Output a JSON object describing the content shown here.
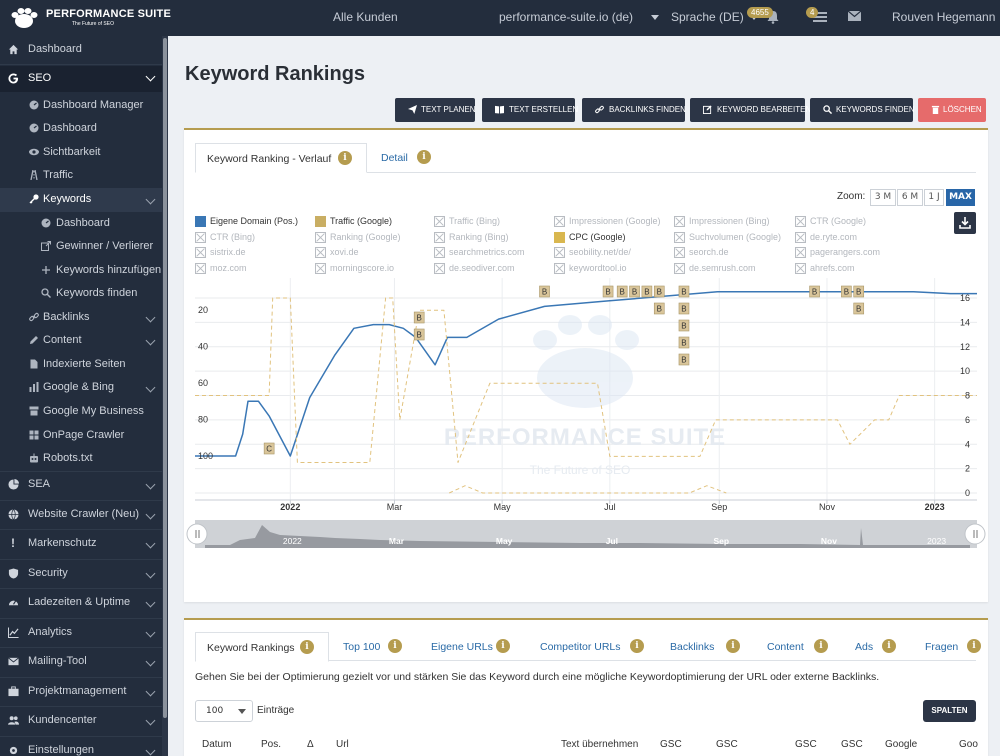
{
  "topbar": {
    "logo_title": "PERFORMANCE SUITE",
    "logo_subtitle": "The Future of SEO",
    "customer_select": "Alle Kunden",
    "domain_select": "performance-suite.io (de)",
    "language_select": "Sprache (DE)",
    "notifications_count": "4655",
    "tasks_count": "4",
    "user_name": "Rouven Hegemann"
  },
  "sidebar": {
    "items": [
      {
        "label": "Dashboard",
        "icon": "home-icon"
      },
      {
        "label": "SEO",
        "icon": "google-icon"
      },
      {
        "label": "Dashboard Manager",
        "icon": "gauge-icon"
      },
      {
        "label": "Dashboard",
        "icon": "gauge-icon"
      },
      {
        "label": "Sichtbarkeit",
        "icon": "eye-icon"
      },
      {
        "label": "Traffic",
        "icon": "traffic-icon"
      },
      {
        "label": "Keywords",
        "icon": "key-icon"
      },
      {
        "label": "Dashboard",
        "icon": "gauge-icon"
      },
      {
        "label": "Gewinner / Verlierer",
        "icon": "external-link-icon"
      },
      {
        "label": "Keywords hinzufügen",
        "icon": "plus-icon"
      },
      {
        "label": "Keywords finden",
        "icon": "search-icon"
      },
      {
        "label": "Backlinks",
        "icon": "link-icon"
      },
      {
        "label": "Content",
        "icon": "pencil-icon"
      },
      {
        "label": "Indexierte Seiten",
        "icon": "file-icon"
      },
      {
        "label": "Google & Bing",
        "icon": "bars-icon"
      },
      {
        "label": "Google My Business",
        "icon": "store-icon"
      },
      {
        "label": "OnPage Crawler",
        "icon": "grid-icon"
      },
      {
        "label": "Robots.txt",
        "icon": "robot-icon"
      },
      {
        "label": "SEA",
        "icon": "pie-icon"
      },
      {
        "label": "Website Crawler (Neu)",
        "icon": "globe-icon"
      },
      {
        "label": "Markenschutz",
        "icon": "exclamation-icon"
      },
      {
        "label": "Security",
        "icon": "shield-icon"
      },
      {
        "label": "Ladezeiten & Uptime",
        "icon": "speed-icon"
      },
      {
        "label": "Analytics",
        "icon": "chart-icon"
      },
      {
        "label": "Mailing-Tool",
        "icon": "mail-icon"
      },
      {
        "label": "Projektmanagement",
        "icon": "briefcase-icon"
      },
      {
        "label": "Kundencenter",
        "icon": "users-icon"
      },
      {
        "label": "Einstellungen",
        "icon": "gear-icon"
      }
    ]
  },
  "page": {
    "title": "Keyword Rankings",
    "actions": [
      "TEXT PLANEN",
      "TEXT ERSTELLEN",
      "BACKLINKS FINDEN",
      "KEYWORD BEARBEITEN",
      "KEYWORDS FINDEN",
      "LÖSCHEN"
    ]
  },
  "chart_panel": {
    "tabs": [
      "Keyword Ranking - Verlauf",
      "Detail"
    ],
    "zoom_label": "Zoom:",
    "zoom_options": [
      "3 M",
      "6 M",
      "1 J",
      "MAX"
    ],
    "zoom_selected": "MAX",
    "legend": [
      {
        "label": "Eigene Domain (Pos.)",
        "active": true,
        "color": "#3a77b5"
      },
      {
        "label": "Traffic (Google)",
        "active": true,
        "color": "#c9ae63"
      },
      {
        "label": "Traffic (Bing)",
        "active": false
      },
      {
        "label": "Impressionen (Google)",
        "active": false
      },
      {
        "label": "Impressionen (Bing)",
        "active": false
      },
      {
        "label": "CTR (Google)",
        "active": false
      },
      {
        "label": "CTR (Bing)",
        "active": false
      },
      {
        "label": "Ranking (Google)",
        "active": false
      },
      {
        "label": "Ranking (Bing)",
        "active": false
      },
      {
        "label": "CPC (Google)",
        "active": true,
        "color": "#d9b74f"
      },
      {
        "label": "Suchvolumen (Google)",
        "active": false
      },
      {
        "label": "de.ryte.com",
        "active": false
      },
      {
        "label": "sistrix.de",
        "active": false
      },
      {
        "label": "xovi.de",
        "active": false
      },
      {
        "label": "searchmetrics.com",
        "active": false
      },
      {
        "label": "seobility.net/de/",
        "active": false
      },
      {
        "label": "seorch.de",
        "active": false
      },
      {
        "label": "pagerangers.com",
        "active": false
      },
      {
        "label": "moz.com",
        "active": false
      },
      {
        "label": "morningscore.io",
        "active": false
      },
      {
        "label": "de.seodiver.com",
        "active": false
      },
      {
        "label": "keywordtool.io",
        "active": false
      },
      {
        "label": "de.semrush.com",
        "active": false
      },
      {
        "label": "ahrefs.com",
        "active": false
      }
    ],
    "watermark_title": "PERFORMANCE SUITE",
    "watermark_subtitle": "The Future of SEO"
  },
  "chart_data": {
    "type": "line",
    "x_ticks": [
      "2022",
      "Mar",
      "May",
      "Jul",
      "Sep",
      "Nov",
      "2023"
    ],
    "y_left_ticks": [
      "20",
      "40",
      "60",
      "80",
      "100"
    ],
    "y_left_reversed": true,
    "y_right_ticks": [
      "16",
      "14",
      "12",
      "10",
      "8",
      "6",
      "4",
      "2",
      "0"
    ],
    "grid": true,
    "navigator_labels": [
      "2022",
      "Mar",
      "May",
      "Jul",
      "Sep",
      "Nov",
      "2023"
    ],
    "series": [
      {
        "name": "Eigene Domain (Pos.)",
        "axis": "left",
        "color": "#3a77b5",
        "x": [
          "2021-11-08",
          "2021-12-01",
          "2021-12-05",
          "2021-12-08",
          "2021-12-14",
          "2021-12-20",
          "2022-01-01",
          "2022-01-12",
          "2022-01-26",
          "2022-02-06",
          "2022-02-17",
          "2022-02-26",
          "2022-03-06",
          "2022-03-13",
          "2022-03-24",
          "2022-03-31",
          "2022-04-11",
          "2022-04-29",
          "2022-05-25",
          "2022-06-30",
          "2022-08-31",
          "2022-11-30",
          "2022-12-20",
          "2023-01-10",
          "2023-01-25"
        ],
        "values": [
          100,
          100,
          88,
          70,
          70,
          78,
          100,
          68,
          45,
          30,
          28,
          28,
          30,
          35,
          50,
          35,
          35,
          25,
          18,
          15,
          10,
          10,
          10,
          11,
          11
        ]
      },
      {
        "name": "Traffic (Google)",
        "axis": "right",
        "color": "#e1c27e",
        "dashed": true,
        "x": [
          "2021-11-08",
          "2021-12-20",
          "2021-12-22",
          "2022-01-01",
          "2022-01-05",
          "2022-02-15",
          "2022-02-24",
          "2022-02-28",
          "2022-03-04",
          "2022-03-15",
          "2022-03-29",
          "2022-04-06",
          "2022-04-24",
          "2022-04-30",
          "2022-06-24",
          "2022-07-01",
          "2022-08-21",
          "2022-08-30",
          "2022-10-25",
          "2022-11-07",
          "2022-11-14",
          "2022-11-28",
          "2022-12-06",
          "2022-12-12",
          "2023-01-25"
        ],
        "values": [
          8,
          8,
          16,
          16,
          2.5,
          2.5,
          16,
          16,
          6,
          15,
          15,
          2.5,
          9,
          9,
          9,
          3,
          3,
          6,
          6,
          6,
          4,
          6,
          6,
          8,
          8
        ]
      },
      {
        "name": "CPC (Google)",
        "axis": "right",
        "color": "#e1c27e",
        "dashed": true,
        "x": [
          "2022-04-01",
          "2022-04-10",
          "2022-04-20",
          "2022-08-15",
          "2022-08-25",
          "2022-09-05"
        ],
        "values": [
          0,
          0.6,
          0,
          0,
          0.6,
          0
        ]
      }
    ],
    "annotations": [
      {
        "x": "2021-12-20",
        "label": "C"
      },
      {
        "x": "2022-03-15",
        "label": "B"
      },
      {
        "x": "2022-03-15",
        "label": "B"
      },
      {
        "x": "2022-05-25",
        "label": "B"
      },
      {
        "x": "2022-06-30",
        "label": "B"
      },
      {
        "x": "2022-07-08",
        "label": "B"
      },
      {
        "x": "2022-07-15",
        "label": "B"
      },
      {
        "x": "2022-07-22",
        "label": "B"
      },
      {
        "x": "2022-07-29",
        "label": "B"
      },
      {
        "x": "2022-07-29",
        "label": "B"
      },
      {
        "x": "2022-08-12",
        "label": "B"
      },
      {
        "x": "2022-08-12",
        "label": "B"
      },
      {
        "x": "2022-08-12",
        "label": "B"
      },
      {
        "x": "2022-08-12",
        "label": "B"
      },
      {
        "x": "2022-08-12",
        "label": "B"
      },
      {
        "x": "2022-10-25",
        "label": "B"
      },
      {
        "x": "2022-11-12",
        "label": "B"
      },
      {
        "x": "2022-11-19",
        "label": "B"
      },
      {
        "x": "2022-11-19",
        "label": "B"
      }
    ]
  },
  "table_panel": {
    "tabs": [
      "Keyword Rankings",
      "Top 100",
      "Eigene URLs",
      "Competitor URLs",
      "Backlinks",
      "Content",
      "Ads",
      "Fragen"
    ],
    "description": "Gehen Sie bei der Optimierung gezielt vor und stärken Sie das Keyword durch eine mögliche Keywordoptimierung der URL oder externe Backlinks.",
    "entries_value": "100",
    "entries_label": "Einträge",
    "columns_button": "SPALTEN",
    "columns": [
      "Datum",
      "Pos.",
      "Δ",
      "Url",
      "Text übernehmen",
      "GSC",
      "GSC",
      "GSC",
      "GSC",
      "Google",
      "Goo"
    ]
  }
}
